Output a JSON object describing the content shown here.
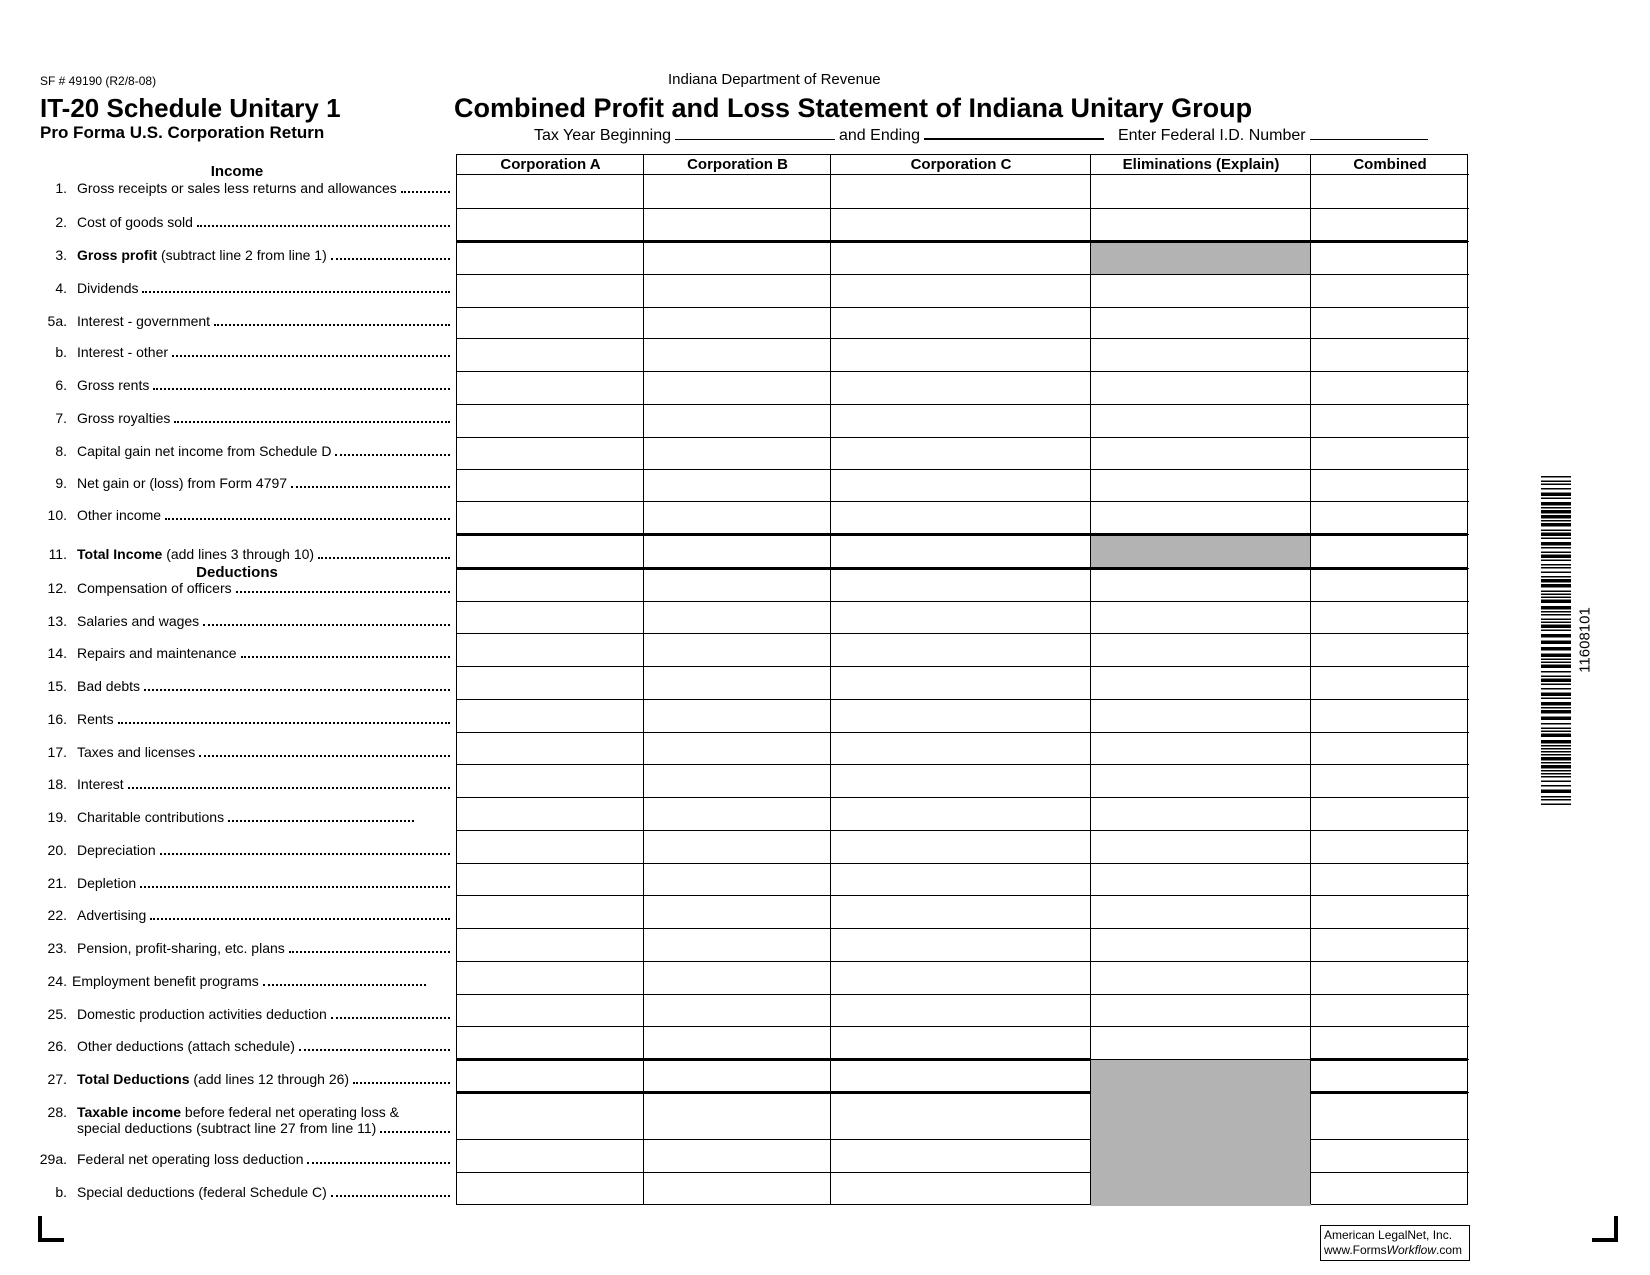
{
  "form_number": "SF # 49190  (R2/8-08)",
  "title_left": "IT-20 Schedule Unitary 1",
  "subtitle_left": "Pro Forma U.S. Corporation Return",
  "department": "Indiana Department of Revenue",
  "title_main": "Combined Profit and Loss Statement of Indiana Unitary Group",
  "tax_year": {
    "beginning_label": "Tax Year Beginning",
    "beginning_value": "",
    "ending_label": "and  Ending",
    "ending_value": "",
    "fein_label": "Enter Federal I.D. Number",
    "fein_value": ""
  },
  "sections": {
    "income": "Income",
    "deductions": "Deductions"
  },
  "columns": [
    "Corporation A",
    "Corporation B",
    "Corporation C",
    "Eliminations (Explain)",
    "Combined"
  ],
  "lines": [
    {
      "num": "1.",
      "bold": "",
      "text": "Gross receipts or sales less returns and allowances"
    },
    {
      "num": "2.",
      "bold": "",
      "text": "Cost of goods sold"
    },
    {
      "num": "3.",
      "bold": "Gross profit",
      "text": " (subtract line 2 from line 1)",
      "elim_shaded": true
    },
    {
      "num": "4.",
      "bold": "",
      "text": "Dividends"
    },
    {
      "num": "5a.",
      "bold": "",
      "text": "Interest - government"
    },
    {
      "num": "b.",
      "bold": "",
      "text": "Interest - other"
    },
    {
      "num": "6.",
      "bold": "",
      "text": "Gross rents"
    },
    {
      "num": "7.",
      "bold": "",
      "text": "Gross royalties"
    },
    {
      "num": "8.",
      "bold": "",
      "text": "Capital gain net income from Schedule D"
    },
    {
      "num": "9.",
      "bold": "",
      "text": "Net gain or (loss) from Form 4797"
    },
    {
      "num": "10.",
      "bold": "",
      "text": "Other  income"
    },
    {
      "num": "11.",
      "bold": "Total  Income",
      "text": " (add lines 3 through 10)",
      "elim_shaded": true
    },
    {
      "num": "12.",
      "bold": "",
      "text": "Compensation  of officers"
    },
    {
      "num": "13.",
      "bold": "",
      "text": "Salaries and wages"
    },
    {
      "num": "14.",
      "bold": "",
      "text": "Repairs and maintenance"
    },
    {
      "num": "15.",
      "bold": "",
      "text": "Bad debts"
    },
    {
      "num": "16.",
      "bold": "",
      "text": "Rents"
    },
    {
      "num": "17.",
      "bold": "",
      "text": "Taxes and licenses"
    },
    {
      "num": "18.",
      "bold": "",
      "text": "Interest"
    },
    {
      "num": "19.",
      "bold": "",
      "text": "Charitable contributions"
    },
    {
      "num": "20.",
      "bold": "",
      "text": "Depreciation"
    },
    {
      "num": "21.",
      "bold": "",
      "text": "Depletion"
    },
    {
      "num": "22.",
      "bold": "",
      "text": "Advertising"
    },
    {
      "num": "23.",
      "bold": "",
      "text": "Pension, profit-sharing, etc. plans"
    },
    {
      "num": "24.",
      "bold": "",
      "text": "Employment benefit programs"
    },
    {
      "num": "25.",
      "bold": "",
      "text": "Domestic production activities deduction"
    },
    {
      "num": "26.",
      "bold": "",
      "text": "Other deductions (attach schedule)"
    },
    {
      "num": "27.",
      "bold": "Total Deductions",
      "text": " (add lines 12 through 26)",
      "elim_shaded": true
    },
    {
      "num": "28.",
      "bold": "Taxable income",
      "text": " before federal net operating loss &",
      "text2": "special deductions (subtract line 27 from line 11)",
      "elim_shaded": true
    },
    {
      "num": "29a.",
      "bold": "",
      "text": "Federal net operating loss deduction",
      "elim_shaded": true
    },
    {
      "num": "b.",
      "bold": "",
      "text": "Special deductions (federal Schedule C)",
      "elim_shaded": true
    }
  ],
  "barcode_number": "11608101",
  "footer": {
    "line1": "American LegalNet, Inc.",
    "line2_prefix": "www.Forms",
    "line2_italic": "Workflow",
    "line2_suffix": ".com"
  },
  "colors": {
    "shade": "#b3b3b3",
    "ink": "#000000"
  }
}
